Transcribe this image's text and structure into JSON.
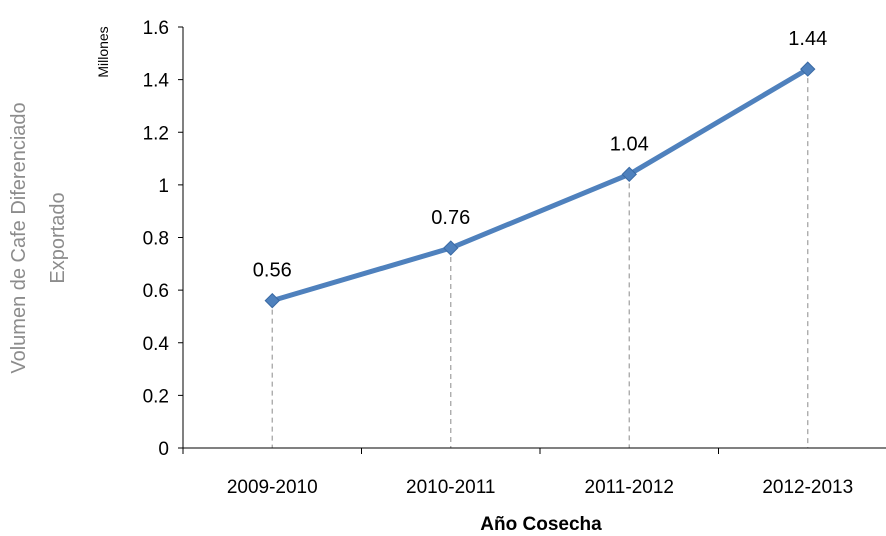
{
  "chart_data": {
    "type": "line",
    "categories": [
      "2009-2010",
      "2010-2011",
      "2011-2012",
      "2012-2013"
    ],
    "series": [
      {
        "values": [
          0.56,
          0.76,
          1.04,
          1.44
        ]
      }
    ],
    "data_labels": [
      "0.56",
      "0.76",
      "1.04",
      "1.44"
    ],
    "ylim": [
      0,
      1.6
    ],
    "yticks": [
      0,
      0.2,
      0.4,
      0.6,
      0.8,
      1,
      1.2,
      1.4,
      1.6
    ],
    "ytick_labels": [
      "0",
      "0.2",
      "0.4",
      "0.6",
      "0.8",
      "1",
      "1.2",
      "1.4",
      "1.6"
    ],
    "ylabel_line1": "Volumen de Cafe Diferenciado",
    "ylabel_line2": "Exportado",
    "y_unit_label": "Millones",
    "xlabel": "Año Cosecha",
    "drop_lines": true,
    "grid": false,
    "colors": {
      "series": "#4f81bd",
      "marker": "#4f81bd",
      "drop_line": "#a6a6a6",
      "axis": "#000000",
      "ylabel": "#8c8c8c"
    }
  }
}
